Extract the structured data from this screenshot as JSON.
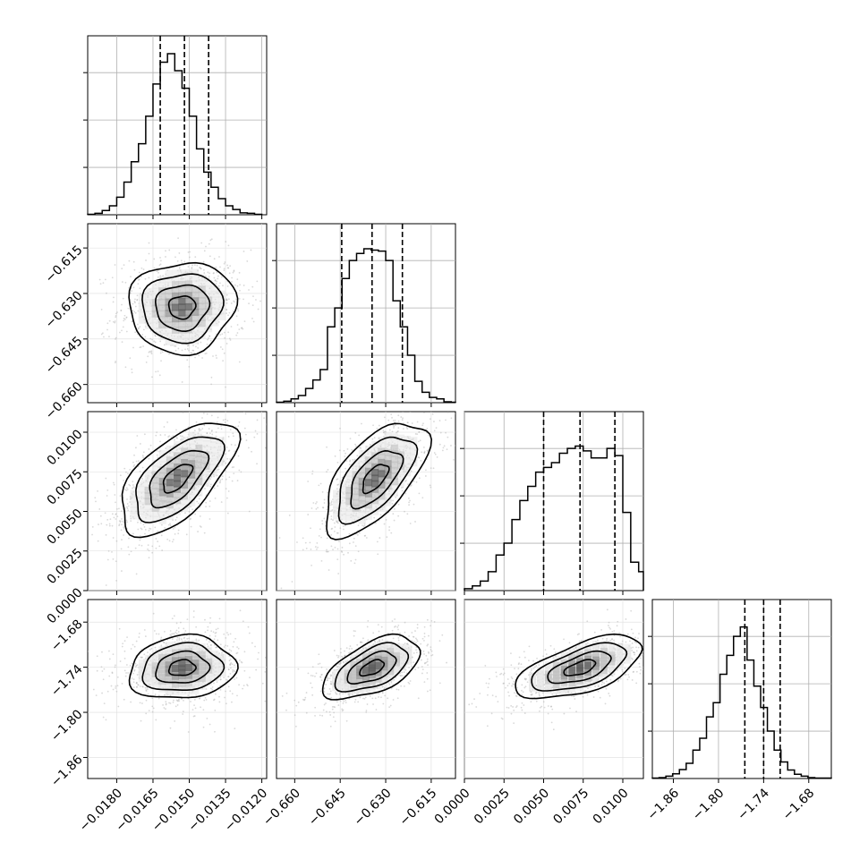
{
  "chart_data": {
    "type": "corner",
    "grid": true,
    "parameters": [
      {
        "range": [
          -0.0192,
          -0.0118
        ],
        "ticks": [
          -0.018,
          -0.0165,
          -0.015,
          -0.0135,
          -0.012
        ],
        "tick_labels": [
          "−0.0180",
          "−0.0165",
          "−0.0150",
          "−0.0135",
          "−0.0120"
        ],
        "quantiles": [
          -0.0162,
          -0.0152,
          -0.0142
        ],
        "hist_x": [
          -0.0192,
          -0.0189,
          -0.0186,
          -0.0183,
          -0.018,
          -0.0177,
          -0.0174,
          -0.0171,
          -0.0168,
          -0.0165,
          -0.0162,
          -0.0159,
          -0.0156,
          -0.0153,
          -0.015,
          -0.0147,
          -0.0144,
          -0.0141,
          -0.0138,
          -0.0135,
          -0.0132,
          -0.0129,
          -0.0126,
          -0.0123,
          -0.012
        ],
        "hist_counts": [
          1,
          3,
          9,
          19,
          37,
          69,
          112,
          150,
          208,
          276,
          322,
          340,
          304,
          267,
          208,
          139,
          90,
          58,
          34,
          19,
          11,
          4,
          3,
          1
        ],
        "yticks": [
          100,
          200,
          300
        ],
        "ymax": 340
      },
      {
        "range": [
          -0.666,
          -0.607
        ],
        "ticks": [
          -0.66,
          -0.645,
          -0.63,
          -0.615
        ],
        "tick_labels": [
          "−0.660",
          "−0.645",
          "−0.630",
          "−0.615"
        ],
        "quantiles": [
          -0.6445,
          -0.6345,
          -0.6245
        ],
        "hist_x": [
          -0.666,
          -0.6636,
          -0.6612,
          -0.6588,
          -0.6564,
          -0.654,
          -0.6516,
          -0.6492,
          -0.6468,
          -0.6444,
          -0.642,
          -0.6396,
          -0.6372,
          -0.6348,
          -0.6324,
          -0.63,
          -0.6276,
          -0.6252,
          -0.6228,
          -0.6204,
          -0.618,
          -0.6156,
          -0.6132,
          -0.6108,
          -0.6084,
          -0.607
        ],
        "hist_counts": [
          1,
          3,
          8,
          15,
          30,
          48,
          70,
          160,
          200,
          262,
          300,
          315,
          325,
          322,
          320,
          300,
          215,
          160,
          100,
          45,
          22,
          11,
          8,
          2,
          1
        ],
        "yticks": [
          100,
          200,
          300
        ],
        "ymax": 340
      },
      {
        "range": [
          0.0,
          0.0113
        ],
        "ticks": [
          0.0,
          0.0025,
          0.005,
          0.0075,
          0.01
        ],
        "tick_labels": [
          "0.0000",
          "0.0025",
          "0.0050",
          "0.0075",
          "0.0100"
        ],
        "quantiles": [
          0.005,
          0.0073,
          0.0095
        ],
        "hist_x": [
          0.0,
          0.0005,
          0.001,
          0.0015,
          0.002,
          0.0025,
          0.003,
          0.0035,
          0.004,
          0.0045,
          0.005,
          0.0055,
          0.006,
          0.0065,
          0.007,
          0.0075,
          0.008,
          0.0085,
          0.009,
          0.0095,
          0.01,
          0.0105,
          0.011,
          0.0113
        ],
        "hist_counts": [
          4,
          10,
          20,
          40,
          75,
          100,
          150,
          190,
          220,
          250,
          260,
          270,
          290,
          300,
          305,
          295,
          280,
          280,
          300,
          285,
          165,
          60,
          40
        ],
        "yticks": [
          100,
          200,
          300
        ],
        "ymax": 340
      },
      {
        "range": [
          -1.888,
          -1.65
        ],
        "ticks": [
          -1.86,
          -1.8,
          -1.74,
          -1.68
        ],
        "tick_labels": [
          "−1.86",
          "−1.80",
          "−1.74",
          "−1.68"
        ],
        "quantiles": [
          -1.765,
          -1.74,
          -1.718
        ],
        "hist_x": [
          -1.888,
          -1.879,
          -1.87,
          -1.861,
          -1.852,
          -1.843,
          -1.834,
          -1.825,
          -1.816,
          -1.807,
          -1.798,
          -1.789,
          -1.78,
          -1.771,
          -1.762,
          -1.753,
          -1.744,
          -1.735,
          -1.726,
          -1.717,
          -1.708,
          -1.699,
          -1.69,
          -1.681,
          -1.672,
          -1.663,
          -1.65
        ],
        "hist_counts": [
          1,
          2,
          5,
          10,
          19,
          32,
          60,
          85,
          130,
          160,
          220,
          260,
          300,
          320,
          250,
          195,
          150,
          100,
          60,
          35,
          18,
          9,
          5,
          2,
          1,
          1
        ],
        "yticks": [
          100,
          200,
          300
        ],
        "ymax": 340
      }
    ],
    "pairs": [
      {
        "x": 0,
        "y": 1,
        "center": [
          -0.0153,
          -0.6345
        ],
        "spread": [
          0.0011,
          0.0075
        ],
        "rho": 0.05
      },
      {
        "x": 0,
        "y": 2,
        "center": [
          -0.0155,
          0.0071
        ],
        "spread": [
          0.0012,
          0.0018
        ],
        "rho": 0.62
      },
      {
        "x": 1,
        "y": 2,
        "center": [
          -0.6335,
          0.0071
        ],
        "spread": [
          0.0085,
          0.0018
        ],
        "rho": 0.62
      },
      {
        "x": 0,
        "y": 3,
        "center": [
          -0.0153,
          -1.741
        ],
        "spread": [
          0.0011,
          0.021
        ],
        "rho": 0.12
      },
      {
        "x": 1,
        "y": 3,
        "center": [
          -0.6345,
          -1.741
        ],
        "spread": [
          0.008,
          0.021
        ],
        "rho": 0.55
      },
      {
        "x": 2,
        "y": 3,
        "center": [
          0.0073,
          -1.741
        ],
        "spread": [
          0.002,
          0.021
        ],
        "rho": 0.6
      }
    ],
    "colors": {
      "line": "#000000",
      "grid": "#b0b0b0",
      "points": "#aaaaaa"
    }
  }
}
